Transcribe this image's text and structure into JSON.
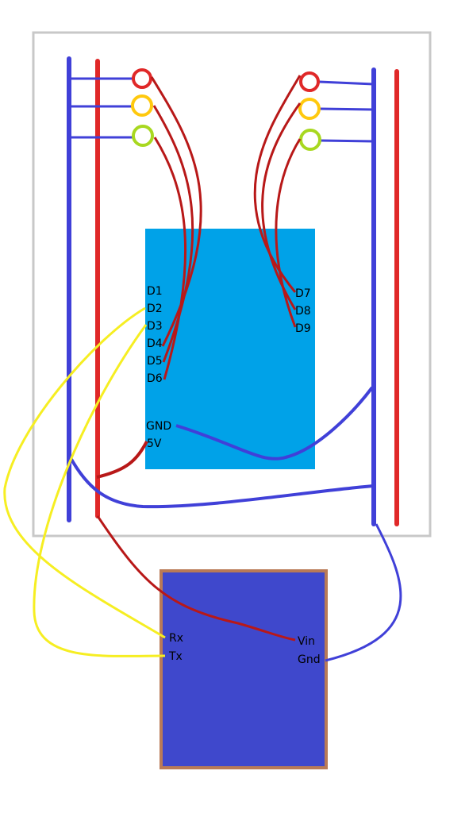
{
  "colors": {
    "board_border": "#c8c8c8",
    "rail_blue": "#4040d8",
    "rail_red": "#e02828",
    "wire_data": "#b81818",
    "wire_serial": "#f6ee22",
    "mcu_fill": "#00a2e8",
    "module_fill": "#3f48cc",
    "module_border": "#b97a57",
    "led_red": "#e02828",
    "led_yellow": "#ffc90e",
    "led_green": "#a8d820"
  },
  "mcu": {
    "left_pins": [
      "D1",
      "D2",
      "D3",
      "D4",
      "D5",
      "D6"
    ],
    "right_pins": [
      "D7",
      "D8",
      "D9"
    ],
    "gnd": "GND",
    "power": "5V"
  },
  "module": {
    "rx": "Rx",
    "tx": "Tx",
    "vin": "Vin",
    "gnd": "Gnd"
  },
  "leds_left": [
    "led-red",
    "led-yellow",
    "led-green"
  ],
  "leds_right": [
    "led-red",
    "led-yellow",
    "led-green"
  ]
}
